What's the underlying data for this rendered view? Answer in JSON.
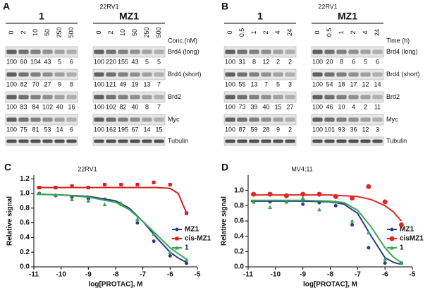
{
  "panel_a": {
    "label": "A",
    "cell_line": "22RV1",
    "axis_label": "Conc.(nM)",
    "lanes": [
      0,
      2,
      10,
      50,
      250,
      500
    ],
    "rows": [
      "Brd4 (long)",
      "Brd4 (short)",
      "Brd2",
      "Myc",
      "Tubulin"
    ],
    "groups": [
      {
        "name": "1",
        "quant": [
          [
            100,
            60,
            104,
            43,
            5,
            6
          ],
          [
            100,
            82,
            70,
            27,
            9,
            8
          ],
          [
            100,
            83,
            84,
            102,
            40,
            16
          ],
          [
            100,
            75,
            81,
            53,
            14,
            6
          ]
        ]
      },
      {
        "name": "MZ1",
        "quant": [
          [
            100,
            220,
            155,
            43,
            5,
            5
          ],
          [
            100,
            121,
            49,
            19,
            13,
            7
          ],
          [
            100,
            102,
            82,
            40,
            8,
            7
          ],
          [
            100,
            162,
            195,
            67,
            14,
            15
          ]
        ]
      }
    ]
  },
  "panel_b": {
    "label": "B",
    "cell_line": "22RV1",
    "axis_label": "Time (h)",
    "lanes": [
      0,
      0.5,
      1,
      2,
      4,
      24
    ],
    "rows": [
      "Brd4 (long)",
      "Brd4 (short)",
      "Brd2",
      "Myc",
      "Tubulin"
    ],
    "groups": [
      {
        "name": "1",
        "quant": [
          [
            100,
            31,
            8,
            12,
            2,
            2
          ],
          [
            100,
            55,
            13,
            7,
            5,
            3
          ],
          [
            100,
            73,
            39,
            40,
            15,
            27
          ],
          [
            100,
            87,
            59,
            28,
            9,
            2
          ]
        ]
      },
      {
        "name": "MZ1",
        "quant": [
          [
            100,
            20,
            8,
            6,
            5,
            6
          ],
          [
            100,
            54,
            18,
            17,
            12,
            14
          ],
          [
            100,
            46,
            10,
            4,
            2,
            11
          ],
          [
            100,
            101,
            93,
            36,
            12,
            3
          ]
        ]
      }
    ]
  },
  "chart_data": [
    {
      "type": "scatter",
      "panel_label": "C",
      "title": "22RV1",
      "x_label": "log[PROTAC], M",
      "y_label": "Relative signal",
      "x": [
        -10.8,
        -10.2,
        -9.6,
        -9.0,
        -8.4,
        -7.8,
        -7.2,
        -6.6,
        -6.0,
        -5.4
      ],
      "curve_x": [
        -10.9,
        -10,
        -9,
        -8,
        -7.5,
        -7,
        -6.5,
        -6,
        -5.7,
        -5.5,
        -5.4
      ],
      "xlim": [
        -11,
        -5
      ],
      "xticks": [
        -11,
        -10,
        -9,
        -8,
        -7,
        -6,
        -5
      ],
      "ylim": [
        0,
        1.25
      ],
      "yticks": [
        {
          "value": 0,
          "label": "0.0"
        },
        {
          "value": 0.2,
          "label": "0.2"
        },
        {
          "value": 0.4,
          "label": "0.4"
        },
        {
          "value": 0.6,
          "label": "0.6"
        },
        {
          "value": 0.8,
          "label": "0.8"
        },
        {
          "value": 1,
          "label": "1.0"
        },
        {
          "value": 1.2,
          "label": "1.2"
        }
      ],
      "legend": "center right",
      "series": [
        {
          "name": "MZ1",
          "color": "#2b3a8c",
          "marker": "circle",
          "values": [
            1.0,
            0.97,
            0.95,
            0.93,
            0.92,
            0.85,
            0.6,
            0.35,
            0.15,
            0.05
          ],
          "curve_values": [
            0.99,
            0.98,
            0.96,
            0.9,
            0.8,
            0.62,
            0.4,
            0.2,
            0.12,
            0.08,
            0.06
          ]
        },
        {
          "name": "cis-MZ1",
          "color": "#d62020",
          "marker": "square",
          "values": [
            1.08,
            1.08,
            1.1,
            1.08,
            1.12,
            1.12,
            1.12,
            1.15,
            1.12,
            0.73
          ],
          "curve_values": [
            1.08,
            1.08,
            1.08,
            1.08,
            1.08,
            1.08,
            1.08,
            1.07,
            1.0,
            0.82,
            0.74
          ]
        },
        {
          "name": "1",
          "color": "#3aa655",
          "marker": "triangle",
          "values": [
            1.0,
            0.98,
            0.92,
            0.9,
            0.85,
            0.87,
            0.65,
            0.45,
            0.2,
            0.1
          ],
          "curve_values": [
            0.99,
            0.98,
            0.95,
            0.88,
            0.78,
            0.62,
            0.44,
            0.26,
            0.18,
            0.13,
            0.1
          ]
        }
      ]
    },
    {
      "type": "scatter",
      "panel_label": "D",
      "title": "MV4;11",
      "x_label": "log[PROTAC], M",
      "y_label": "Relative signal",
      "x": [
        -10.8,
        -10.2,
        -9.6,
        -9.0,
        -8.4,
        -7.8,
        -7.2,
        -6.6,
        -6.0,
        -5.4
      ],
      "curve_x": [
        -10.9,
        -10,
        -9,
        -8,
        -7.5,
        -7,
        -6.5,
        -6,
        -5.7,
        -5.5,
        -5.4
      ],
      "xlim": [
        -11,
        -5
      ],
      "xticks": [
        -11,
        -10,
        -9,
        -8,
        -7,
        -6,
        -5
      ],
      "ylim": [
        0,
        1.2
      ],
      "yticks": [
        {
          "value": 0,
          "label": "0.0"
        },
        {
          "value": 0.2,
          "label": "0.2"
        },
        {
          "value": 0.4,
          "label": "0.4"
        },
        {
          "value": 0.6,
          "label": "0.6"
        },
        {
          "value": 0.8,
          "label": "0.8"
        },
        {
          "value": 1,
          "label": "1.0"
        }
      ],
      "legend": "center right",
      "series": [
        {
          "name": "MZ1",
          "color": "#2b3a8c",
          "marker": "circle",
          "values": [
            0.85,
            0.85,
            0.85,
            0.82,
            0.84,
            0.8,
            0.55,
            0.25,
            0.05,
            0.05
          ],
          "curve_values": [
            0.86,
            0.86,
            0.86,
            0.85,
            0.82,
            0.7,
            0.4,
            0.12,
            0.06,
            0.04,
            0.04
          ]
        },
        {
          "name": "cisMZ1",
          "color": "#e02828",
          "marker": "circle",
          "values": [
            0.95,
            0.95,
            0.93,
            0.95,
            0.95,
            0.92,
            0.9,
            1.05,
            0.85,
            0.55
          ],
          "curve_values": [
            0.94,
            0.94,
            0.94,
            0.94,
            0.93,
            0.92,
            0.88,
            0.8,
            0.72,
            0.64,
            0.6
          ]
        },
        {
          "name": "1",
          "color": "#3aa655",
          "marker": "triangle",
          "values": [
            0.85,
            0.78,
            0.85,
            0.9,
            0.75,
            0.85,
            0.6,
            0.45,
            0.1,
            0.05
          ],
          "curve_values": [
            0.87,
            0.87,
            0.87,
            0.86,
            0.84,
            0.74,
            0.52,
            0.25,
            0.13,
            0.08,
            0.06
          ]
        }
      ]
    }
  ]
}
